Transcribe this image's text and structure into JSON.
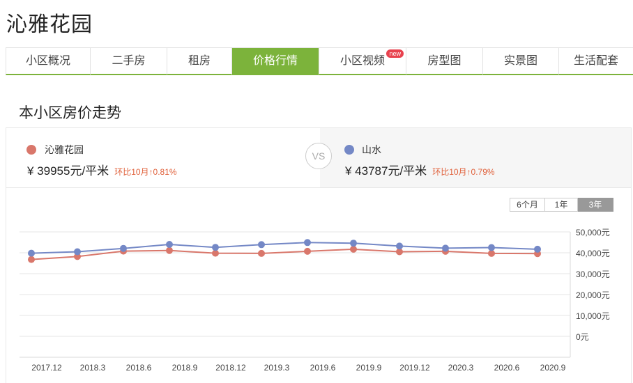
{
  "page_title": "沁雅花园",
  "tabs": [
    {
      "label": "小区概况",
      "active": false
    },
    {
      "label": "二手房",
      "active": false
    },
    {
      "label": "租房",
      "active": false
    },
    {
      "label": "价格行情",
      "active": true
    },
    {
      "label": "小区视频",
      "active": false,
      "badge": "new"
    },
    {
      "label": "房型图",
      "active": false
    },
    {
      "label": "实景图",
      "active": false
    },
    {
      "label": "生活配套",
      "active": false
    }
  ],
  "section_title": "本小区房价走势",
  "compare": {
    "left": {
      "name": "沁雅花园",
      "price": "¥ 39955元/平米",
      "change": "环比10月↑0.81%",
      "color": "#d9776b"
    },
    "vs": "VS",
    "right": {
      "name": "山水",
      "price": "¥ 43787元/平米",
      "change": "环比10月↑0.79%",
      "color": "#7488c6"
    }
  },
  "range_buttons": [
    {
      "label": "6个月",
      "active": false
    },
    {
      "label": "1年",
      "active": false
    },
    {
      "label": "3年",
      "active": true
    }
  ],
  "chart_data": {
    "type": "line",
    "x_tick_labels": [
      "2017.12",
      "2018.3",
      "2018.6",
      "2018.9",
      "2018.12",
      "2019.3",
      "2019.6",
      "2019.9",
      "2019.12",
      "2020.3",
      "2020.6",
      "2020.9"
    ],
    "y_tick_labels": [
      "50,000元",
      "40,000元",
      "30,000元",
      "20,000元",
      "10,000元",
      "0元"
    ],
    "ylim": [
      0,
      50000
    ],
    "grid": true,
    "series": [
      {
        "name": "沁雅花园",
        "color": "#d9776b",
        "values": [
          36800,
          38200,
          40800,
          41100,
          39800,
          39700,
          40700,
          41700,
          40500,
          40700,
          39700,
          39600
        ]
      },
      {
        "name": "山水",
        "color": "#7488c6",
        "values": [
          39800,
          40500,
          42100,
          44000,
          42600,
          43900,
          44900,
          44600,
          43200,
          42200,
          42500,
          41700
        ]
      }
    ]
  }
}
